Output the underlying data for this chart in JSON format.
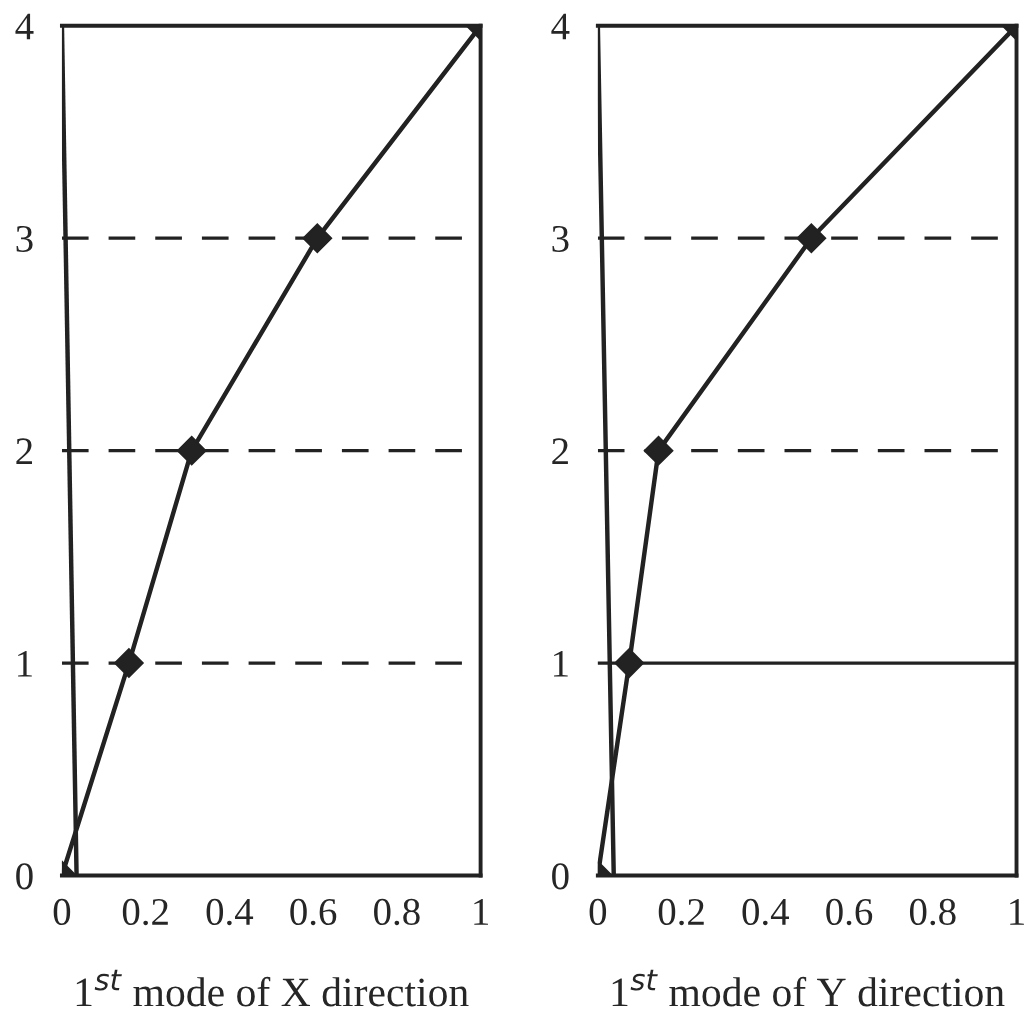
{
  "chart_data": [
    {
      "type": "line",
      "xlabel": "1$^{st}$ mode of X direction",
      "xlim": [
        0,
        1
      ],
      "ylim": [
        0,
        4
      ],
      "xticks": [
        0,
        0.2,
        0.4,
        0.6,
        0.8,
        1
      ],
      "yticks": [
        0,
        1,
        2,
        3,
        4
      ],
      "grid": false,
      "legend": false,
      "marker": "diamond",
      "line_style": "solid",
      "series": [
        {
          "color": "#222222",
          "x": [
            0,
            0.16,
            0.31,
            0.61,
            1
          ],
          "values": [
            0,
            1,
            2,
            3,
            4
          ]
        },
        {
          "color": "#222222",
          "marker": "none",
          "x": [
            0,
            0.035
          ],
          "values": [
            4,
            0
          ]
        }
      ],
      "ref_lines": [
        {
          "axis": "y",
          "value": 1,
          "line_style": "dashed",
          "color": "#222222"
        },
        {
          "axis": "y",
          "value": 2,
          "line_style": "dashed",
          "color": "#222222"
        },
        {
          "axis": "y",
          "value": 3,
          "line_style": "dashed",
          "color": "#222222"
        }
      ]
    },
    {
      "type": "line",
      "xlabel": "1$^{st}$ mode of Y direction",
      "xlim": [
        0,
        1
      ],
      "ylim": [
        0,
        4
      ],
      "xticks": [
        0,
        0.2,
        0.4,
        0.6,
        0.8,
        1
      ],
      "yticks": [
        0,
        1,
        2,
        3,
        4
      ],
      "grid": false,
      "legend": false,
      "marker": "diamond",
      "line_style": "solid",
      "series": [
        {
          "color": "#222222",
          "x": [
            0,
            0.075,
            0.145,
            0.51,
            1
          ],
          "values": [
            0,
            1,
            2,
            3,
            4
          ]
        },
        {
          "color": "#222222",
          "marker": "none",
          "x": [
            0,
            0.038
          ],
          "values": [
            4,
            0
          ]
        }
      ],
      "ref_lines": [
        {
          "axis": "y",
          "value": 1,
          "line_style": "solid",
          "color": "#222222"
        },
        {
          "axis": "y",
          "value": 2,
          "line_style": "dashed",
          "color": "#222222"
        },
        {
          "axis": "y",
          "value": 3,
          "line_style": "dashed",
          "color": "#222222"
        }
      ]
    }
  ]
}
